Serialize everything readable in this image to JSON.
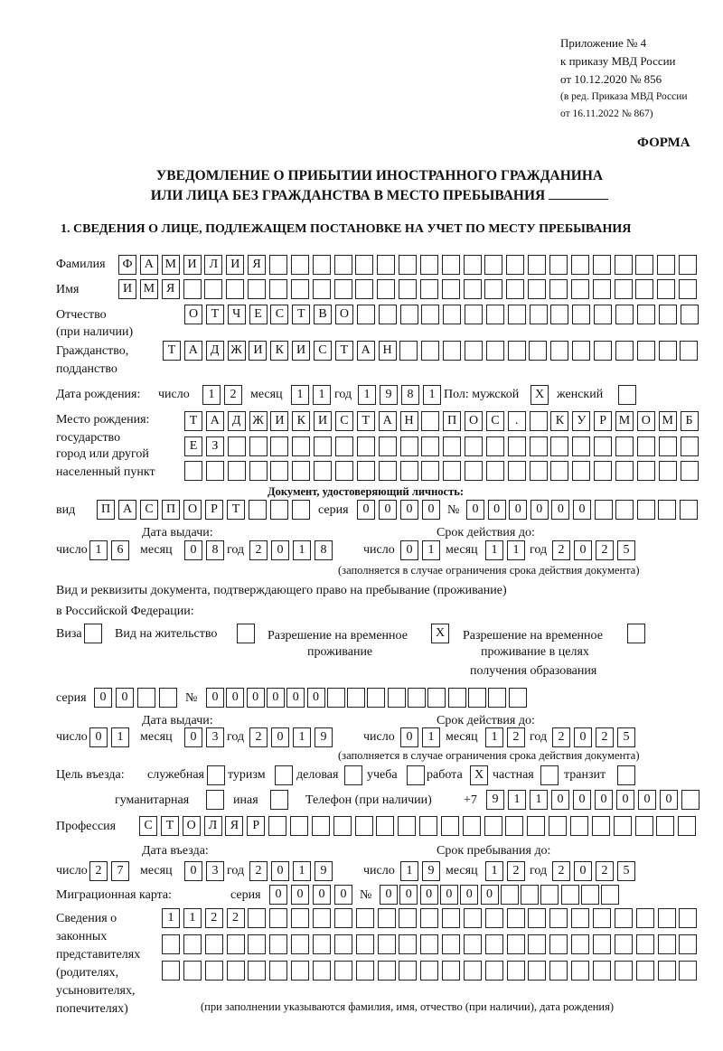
{
  "header": {
    "appendix": [
      "Приложение № 4",
      "к приказу МВД России",
      "от 10.12.2020 № 856"
    ],
    "revision": [
      "(в ред. Приказа МВД России",
      "от 16.11.2022 № 867)"
    ],
    "forma": "ФОРМА",
    "title_line1": "УВЕДОМЛЕНИЕ О ПРИБЫТИИ ИНОСТРАННОГО ГРАЖДАНИНА",
    "title_line2": "ИЛИ ЛИЦА БЕЗ ГРАЖДАНСТВА В МЕСТО ПРЕБЫВАНИЯ",
    "section1": "1. СВЕДЕНИЯ О ЛИЦЕ, ПОДЛЕЖАЩЕМ ПОСТАНОВКЕ НА УЧЕТ ПО МЕСТУ ПРЕБЫВАНИЯ"
  },
  "person": {
    "surname": {
      "label": "Фамилия",
      "value": "ФАМИЛИЯ"
    },
    "name": {
      "label": "Имя",
      "value": "ИМЯ"
    },
    "patronymic": {
      "label": "Отчество",
      "label2": "(при наличии)",
      "value": "ОТЧЕСТВО"
    },
    "citizenship": {
      "label": "Гражданство,",
      "label2": "подданство",
      "value": "ТАДЖИКИСТАН"
    },
    "birth": {
      "label": "Дата рождения:",
      "day_label": "число",
      "month_label": "месяц",
      "year_label": "год",
      "day": "12",
      "month": "11",
      "year": "1981",
      "sex_label": "Пол: мужской",
      "female_label": "женский",
      "male": "X",
      "female": ""
    },
    "birthplace": {
      "labels": [
        "Место рождения:",
        "государство",
        "город или другой",
        "населенный пункт"
      ],
      "rows": [
        "ТАДЖИКИСТАН ПОС. КУРМОМБ",
        "ЕЗ",
        ""
      ]
    }
  },
  "identity_doc": {
    "heading": "Документ, удостоверяющий личность:",
    "kind_label": "вид",
    "kind": "ПАСПОРТ",
    "series_label": "серия",
    "series": "0000",
    "number_label": "№",
    "number": "000000",
    "issue_label": "Дата выдачи:",
    "expiry_label": "Срок действия до:",
    "day_label": "число",
    "month_label": "месяц",
    "year_label": "год",
    "issue": {
      "day": "16",
      "month": "08",
      "year": "2018"
    },
    "expiry": {
      "day": "01",
      "month": "11",
      "year": "2025"
    },
    "note": "(заполняется в случае ограничения срока действия документа)"
  },
  "stay_doc": {
    "intro1": "Вид и реквизиты документа, подтверждающего право на пребывание (проживание)",
    "intro2": "в Российской Федерации:",
    "visa_label": "Виза",
    "visa": "",
    "residence_label": "Вид на жительство",
    "residence": "",
    "trp_label1": "Разрешение на временное",
    "trp_label2": "проживание",
    "trp": "X",
    "trp_edu_label1": "Разрешение на временное",
    "trp_edu_label2": "проживание в целях",
    "trp_edu_label3": "получения образования",
    "trp_edu": "",
    "series_label": "серия",
    "series": "00",
    "number_label": "№",
    "number": "000000",
    "issue_label": "Дата выдачи:",
    "expiry_label": "Срок действия до:",
    "day_label": "число",
    "month_label": "месяц",
    "year_label": "год",
    "issue": {
      "day": "01",
      "month": "03",
      "year": "2019"
    },
    "expiry": {
      "day": "01",
      "month": "12",
      "year": "2025"
    },
    "note": "(заполняется в случае ограничения срока действия документа)"
  },
  "purpose": {
    "label": "Цель въезда:",
    "options": [
      {
        "label": "служебная",
        "mark": ""
      },
      {
        "label": "туризм",
        "mark": ""
      },
      {
        "label": "деловая",
        "mark": ""
      },
      {
        "label": "учеба",
        "mark": ""
      },
      {
        "label": "работа",
        "mark": "X"
      },
      {
        "label": "частная",
        "mark": ""
      },
      {
        "label": "транзит",
        "mark": ""
      },
      {
        "label": "гуманитарная",
        "mark": ""
      },
      {
        "label": "иная",
        "mark": ""
      }
    ],
    "phone_label": "Телефон (при наличии)",
    "phone_prefix": "+7",
    "phone": "911000000"
  },
  "profession": {
    "label": "Профессия",
    "value": "СТОЛЯР"
  },
  "entry": {
    "entry_label": "Дата въезда:",
    "stay_label": "Срок пребывания до:",
    "day_label": "число",
    "month_label": "месяц",
    "year_label": "год",
    "entry_date": {
      "day": "27",
      "month": "03",
      "year": "2019"
    },
    "stay_until": {
      "day": "19",
      "month": "12",
      "year": "2025"
    }
  },
  "migration_card": {
    "label": "Миграционная карта:",
    "series_label": "серия",
    "series": "0000",
    "number_label": "№",
    "number": "000000"
  },
  "representatives": {
    "labels": [
      "Сведения о",
      "законных",
      "представителях",
      "(родителях,",
      "усыновителях,",
      "попечителях)"
    ],
    "rows": [
      "1122",
      "",
      ""
    ],
    "note": "(при заполнении указываются фамилия, имя, отчество (при наличии), дата рождения)"
  }
}
